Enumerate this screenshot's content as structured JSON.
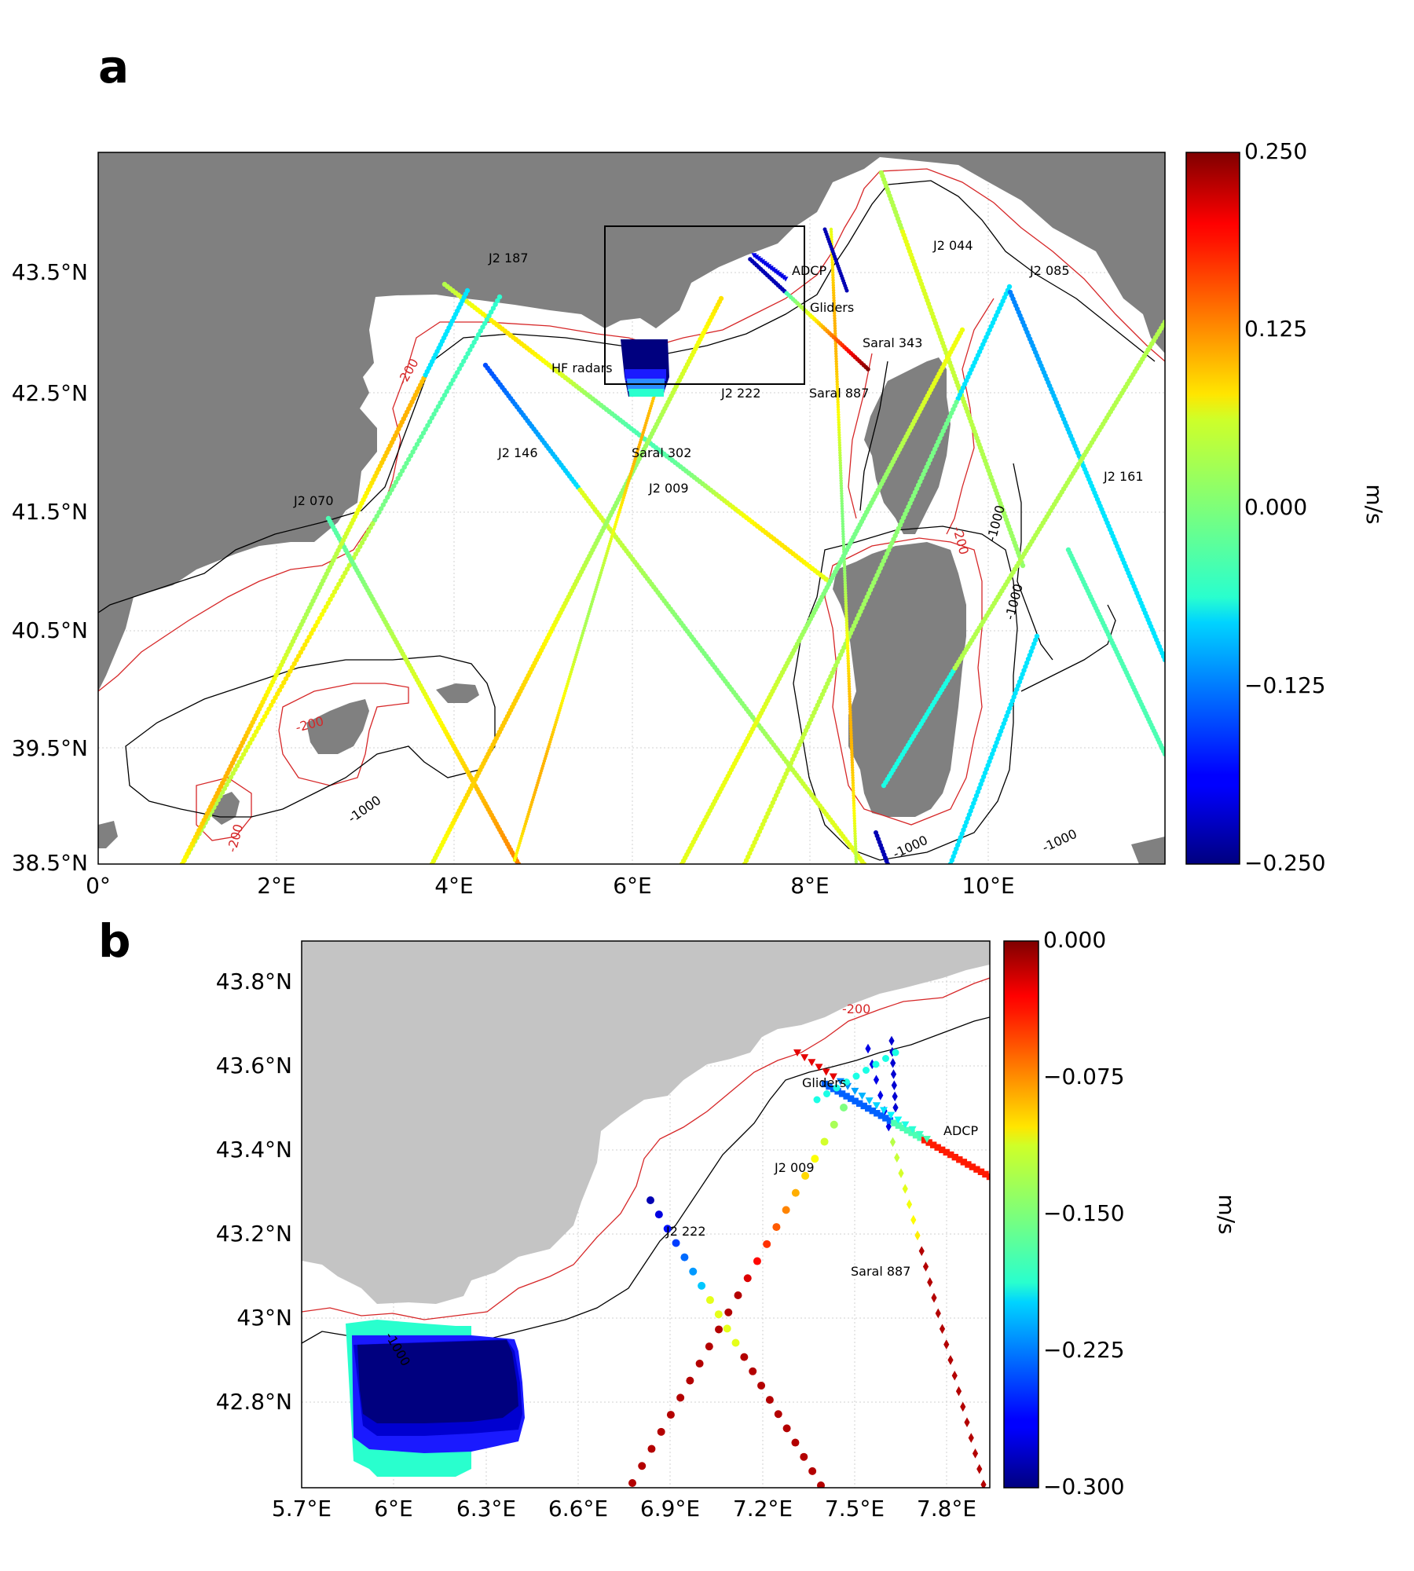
{
  "panel_a": {
    "letter": "a",
    "x_ticks": [
      "0°",
      "2°E",
      "4°E",
      "6°E",
      "8°E",
      "10°E"
    ],
    "y_ticks": [
      "38.5°N",
      "39.5°N",
      "40.5°N",
      "41.5°N",
      "42.5°N",
      "43.5°N"
    ],
    "track_labels": [
      "J2 187",
      "J2 044",
      "J2 085",
      "ADCP",
      "Gliders",
      "Saral 343",
      "HF radars",
      "J2 222",
      "Saral 887",
      "J2 146",
      "Saral 302",
      "J2 009",
      "J2 070",
      "J2 161"
    ],
    "contour_labels": [
      "-200",
      "-200",
      "-200",
      "-200",
      "-1000",
      "-1000",
      "-1000",
      "-1000",
      "-1000"
    ],
    "colorbar": {
      "ticks": [
        "0.250",
        "0.125",
        "0.000",
        "−0.125",
        "−0.250"
      ],
      "unit": "m/s",
      "range": [
        -0.25,
        0.25
      ],
      "colormap": "jet"
    }
  },
  "panel_b": {
    "letter": "b",
    "x_ticks": [
      "5.7°E",
      "6°E",
      "6.3°E",
      "6.6°E",
      "6.9°E",
      "7.2°E",
      "7.5°E",
      "7.8°E"
    ],
    "y_ticks": [
      "43.8°N",
      "43.6°N",
      "43.4°N",
      "43.2°N",
      "43°N",
      "42.8°N"
    ],
    "track_labels": [
      "Gliders",
      "ADCP",
      "J2 009",
      "J2 222",
      "Saral 887"
    ],
    "contour_labels": [
      "-200",
      "-1000"
    ],
    "colorbar": {
      "ticks": [
        "0.000",
        "−0.075",
        "−0.150",
        "−0.225",
        "−0.300"
      ],
      "unit": "m/s",
      "range": [
        -0.3,
        0.0
      ],
      "colormap": "jet"
    }
  },
  "colors": {
    "land_a": "#808080",
    "land_b": "#c4c4c4",
    "contour_200": "#d62728",
    "contour_1000": "#000000"
  }
}
